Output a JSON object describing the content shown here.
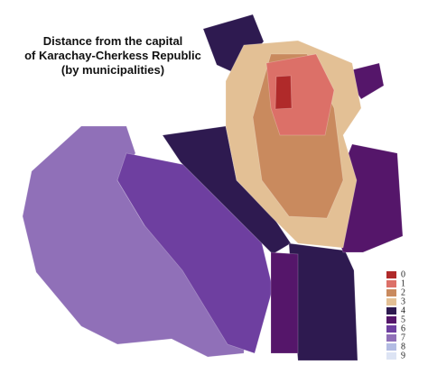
{
  "title": [
    "Distance from the capital",
    "of Karachay-Cherkess Republic",
    "(by municipalities)"
  ],
  "legend": [
    {
      "label": "0",
      "color": "#b02a2a"
    },
    {
      "label": "1",
      "color": "#dc7068"
    },
    {
      "label": "2",
      "color": "#c98a5e"
    },
    {
      "label": "3",
      "color": "#e3c095"
    },
    {
      "label": "4",
      "color": "#2e1a50"
    },
    {
      "label": "5",
      "color": "#55166a"
    },
    {
      "label": "6",
      "color": "#6e3fa0"
    },
    {
      "label": "7",
      "color": "#9070b8"
    },
    {
      "label": "8",
      "color": "#b3bce3"
    },
    {
      "label": "9",
      "color": "#dde4f4"
    }
  ]
}
